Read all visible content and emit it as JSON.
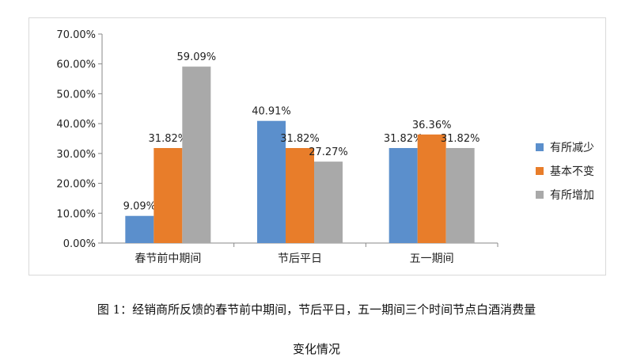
{
  "chart_data": {
    "type": "bar",
    "categories": [
      "春节前中期间",
      "节后平日",
      "五一期间"
    ],
    "series": [
      {
        "name": "有所减少",
        "values": [
          9.09,
          40.91,
          31.82
        ],
        "labels": [
          "9.09%",
          "40.91%",
          "31.82%"
        ],
        "color": "#5b8fcc"
      },
      {
        "name": "基本不变",
        "values": [
          31.82,
          31.82,
          36.36
        ],
        "labels": [
          "31.82%",
          "31.82%",
          "36.36%"
        ],
        "color": "#e87d2a"
      },
      {
        "name": "有所增加",
        "values": [
          59.09,
          27.27,
          31.82
        ],
        "labels": [
          "59.09%",
          "27.27%",
          "31.82%"
        ],
        "color": "#a9a9a9"
      }
    ],
    "ylim": [
      0,
      70
    ],
    "yticks": [
      "0.00%",
      "10.00%",
      "20.00%",
      "30.00%",
      "40.00%",
      "50.00%",
      "60.00%",
      "70.00%"
    ],
    "legend_position": "right",
    "grid": false
  },
  "caption": {
    "line1": "图 1：经销商所反馈的春节前中期间，节后平日，五一期间三个时间节点白酒消费量",
    "line2": "变化情况"
  }
}
